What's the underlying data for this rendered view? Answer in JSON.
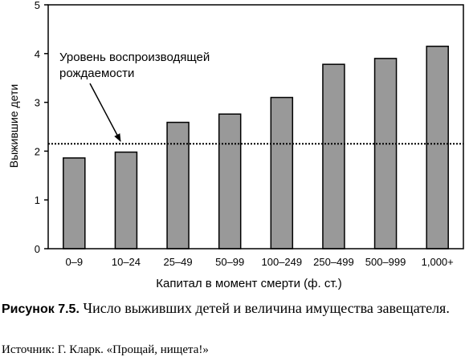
{
  "chart_data": {
    "type": "bar",
    "categories": [
      "0–9",
      "10–24",
      "25–49",
      "50–99",
      "100–249",
      "250–499",
      "500–999",
      "1,000+"
    ],
    "values": [
      1.86,
      1.98,
      2.59,
      2.76,
      3.1,
      3.78,
      3.9,
      4.15
    ],
    "xlabel": "Капитал в момент смерти (ф. ст.)",
    "ylabel": "Выжившие дети",
    "ylim": [
      0,
      5
    ],
    "yticks": [
      "0",
      "1",
      "2",
      "3",
      "4",
      "5"
    ],
    "reference_line": {
      "value": 2.15,
      "style": "dotted"
    },
    "annotation": {
      "lines": [
        "Уровень воспроизводящей",
        "рождаемости"
      ]
    },
    "bar_color": "#999999",
    "grid": false
  },
  "caption": {
    "label": "Рисунок 7.5.",
    "text": "Число выживших детей и величина имущества завещателя."
  },
  "source": "Источник: Г. Кларк. «Прощай, нищета!»"
}
